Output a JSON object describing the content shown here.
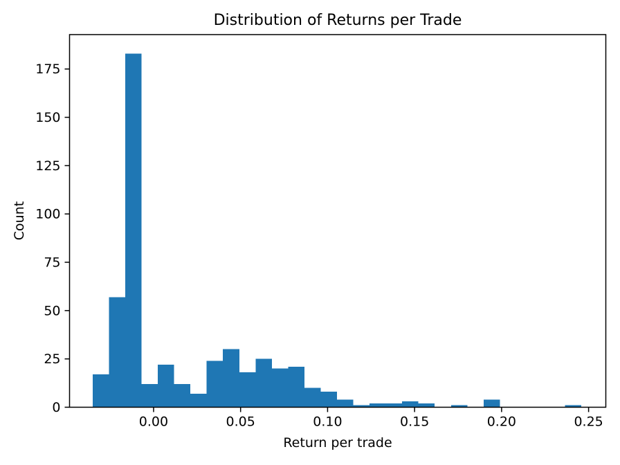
{
  "chart_data": {
    "type": "bar",
    "subtype": "histogram",
    "title": "Distribution of Returns per Trade",
    "xlabel": "Return per trade",
    "ylabel": "Count",
    "bar_color": "#1f77b4",
    "axis_color": "#000000",
    "background_color": "#ffffff",
    "bin_start": -0.035,
    "bin_width": 0.00936,
    "counts": [
      17,
      57,
      183,
      12,
      22,
      12,
      7,
      24,
      30,
      18,
      25,
      20,
      21,
      10,
      8,
      4,
      1,
      2,
      2,
      3,
      2,
      0,
      1,
      0,
      4,
      0,
      0,
      0,
      0,
      1
    ],
    "x_ticks": [
      0.0,
      0.05,
      0.1,
      0.15,
      0.2,
      0.25
    ],
    "x_tick_labels": [
      "0.00",
      "0.05",
      "0.10",
      "0.15",
      "0.20",
      "0.25"
    ],
    "y_ticks": [
      0,
      25,
      50,
      75,
      100,
      125,
      150,
      175
    ],
    "y_tick_labels": [
      "0",
      "25",
      "50",
      "75",
      "100",
      "125",
      "150",
      "175"
    ],
    "xlim": [
      -0.0483,
      0.2599
    ],
    "ylim": [
      0,
      192.8
    ],
    "grid": false,
    "legend": "none"
  }
}
